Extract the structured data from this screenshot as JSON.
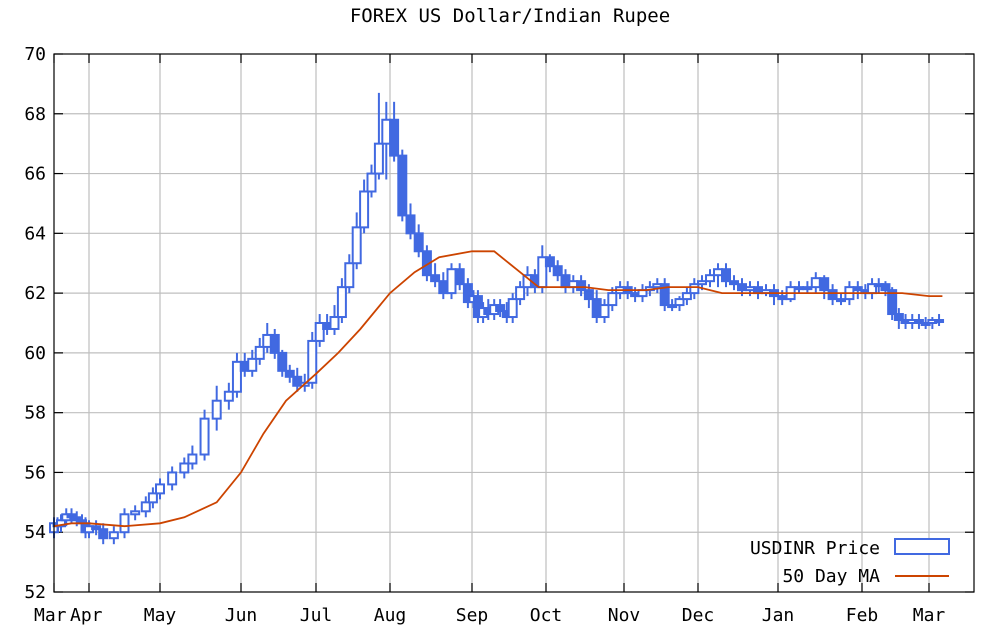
{
  "chart_data": {
    "type": "candlestick",
    "title": "FOREX US Dollar/Indian Rupee",
    "xlabel": "",
    "ylabel": "",
    "ylim": [
      52,
      70
    ],
    "y_ticks": [
      52,
      54,
      56,
      58,
      60,
      62,
      64,
      66,
      68,
      70
    ],
    "x_ticks": [
      "Mar",
      "Apr",
      "May",
      "Jun",
      "Jul",
      "Aug",
      "Sep",
      "Oct",
      "Nov",
      "Dec",
      "Jan",
      "Feb",
      "Mar"
    ],
    "grid": true,
    "legend_position": "bottom-right",
    "series": [
      {
        "name": "USDINR Price",
        "style": "candlestick",
        "color": "#4169E1",
        "x": [
          0.0,
          0.1,
          0.2,
          0.35,
          0.5,
          0.65,
          0.8,
          0.9,
          1.0,
          1.1,
          1.2,
          1.35,
          1.5,
          1.65,
          1.8,
          1.9,
          2.0,
          2.15,
          2.3,
          2.4,
          2.55,
          2.7,
          2.85,
          2.95,
          3.05,
          3.15,
          3.25,
          3.35,
          3.45,
          3.55,
          3.65,
          3.75,
          3.85,
          3.95,
          4.05,
          4.15,
          4.25,
          4.35,
          4.45,
          4.55,
          4.65,
          4.75,
          4.85,
          4.95,
          5.05,
          5.15,
          5.25,
          5.35,
          5.45,
          5.55,
          5.65,
          5.75,
          5.85,
          5.95,
          6.02,
          6.08,
          6.15,
          6.22,
          6.3,
          6.38,
          6.47,
          6.55,
          6.65,
          6.75,
          6.85,
          6.95,
          7.05,
          7.15,
          7.25,
          7.35,
          7.45,
          7.55,
          7.65,
          7.75,
          7.85,
          7.95,
          8.05,
          8.15,
          8.25,
          8.35,
          8.45,
          8.55,
          8.65,
          8.75,
          8.85,
          8.95,
          9.05,
          9.15,
          9.25,
          9.35,
          9.45,
          9.55,
          9.65,
          9.75,
          9.85,
          9.95,
          10.05,
          10.15,
          10.25,
          10.35,
          10.45,
          10.55,
          10.65,
          10.75,
          10.85,
          10.95,
          11.05,
          11.15,
          11.25,
          11.35,
          11.45,
          11.55,
          11.65,
          11.75,
          11.85,
          11.95,
          12.05,
          12.15
        ],
        "open": [
          54.0,
          54.3,
          54.2,
          54.4,
          54.6,
          54.5,
          54.4,
          54.3,
          54.0,
          54.2,
          54.1,
          53.8,
          54.0,
          54.6,
          54.7,
          55.0,
          55.3,
          55.6,
          56.0,
          56.3,
          56.6,
          57.8,
          58.4,
          58.7,
          59.7,
          59.4,
          59.8,
          60.2,
          60.6,
          60.0,
          59.4,
          59.2,
          58.9,
          59.0,
          60.4,
          61.0,
          60.8,
          61.2,
          62.2,
          63.0,
          64.2,
          65.4,
          66.0,
          67.0,
          67.8,
          66.6,
          64.6,
          64.0,
          63.4,
          62.6,
          62.4,
          62.0,
          62.8,
          62.3,
          61.7,
          61.9,
          61.2,
          61.5,
          61.3,
          61.6,
          61.4,
          61.2,
          61.8,
          62.2,
          62.6,
          62.2,
          63.2,
          62.9,
          62.6,
          62.2,
          62.4,
          62.1,
          61.8,
          61.2,
          61.6,
          62.0,
          62.2,
          62.0,
          61.9,
          62.1,
          62.2,
          62.3,
          61.6,
          61.6,
          61.8,
          62.0,
          62.3,
          62.4,
          62.6,
          62.8,
          62.4,
          62.3,
          62.1,
          62.2,
          62.0,
          62.1,
          61.9,
          61.8,
          62.2,
          62.2,
          62.2,
          62.5,
          62.1,
          61.8,
          61.8,
          62.2,
          62.1,
          62.0,
          62.3,
          62.3,
          62.1,
          61.3,
          61.1,
          61.0,
          61.1,
          61.0,
          61.0,
          61.1
        ],
        "close": [
          54.3,
          54.2,
          54.4,
          54.6,
          54.5,
          54.4,
          54.3,
          54.0,
          54.2,
          54.1,
          53.8,
          54.0,
          54.6,
          54.7,
          55.0,
          55.3,
          55.6,
          56.0,
          56.3,
          56.6,
          57.8,
          58.4,
          58.7,
          59.7,
          59.4,
          59.8,
          60.2,
          60.6,
          60.0,
          59.4,
          59.2,
          58.9,
          59.0,
          60.4,
          61.0,
          60.8,
          61.2,
          62.2,
          63.0,
          64.2,
          65.4,
          66.0,
          67.0,
          67.8,
          66.6,
          64.6,
          64.0,
          63.4,
          62.6,
          62.4,
          62.0,
          62.8,
          62.3,
          61.7,
          61.9,
          61.2,
          61.5,
          61.3,
          61.6,
          61.4,
          61.2,
          61.8,
          62.2,
          62.6,
          62.2,
          63.2,
          62.9,
          62.6,
          62.2,
          62.4,
          62.1,
          61.8,
          61.2,
          61.6,
          62.0,
          62.2,
          62.0,
          61.9,
          62.1,
          62.2,
          62.3,
          61.6,
          61.6,
          61.8,
          62.0,
          62.3,
          62.4,
          62.6,
          62.8,
          62.4,
          62.3,
          62.1,
          62.2,
          62.0,
          62.1,
          61.9,
          61.8,
          62.2,
          62.2,
          62.2,
          62.5,
          62.1,
          61.8,
          61.8,
          62.2,
          62.1,
          62.0,
          62.3,
          62.3,
          62.1,
          61.3,
          61.1,
          61.0,
          61.1,
          61.0,
          61.0,
          61.1,
          61.1
        ],
        "high": [
          54.5,
          54.5,
          54.6,
          54.8,
          54.8,
          54.7,
          54.6,
          54.5,
          54.4,
          54.4,
          54.3,
          54.2,
          54.8,
          54.9,
          55.2,
          55.5,
          55.8,
          56.2,
          56.5,
          56.9,
          58.1,
          58.9,
          59.0,
          60.0,
          60.0,
          60.1,
          60.5,
          61.0,
          60.8,
          60.1,
          59.6,
          59.5,
          59.3,
          60.7,
          61.3,
          61.3,
          61.6,
          62.5,
          63.3,
          64.7,
          65.8,
          66.3,
          68.7,
          68.4,
          68.4,
          66.8,
          65.0,
          64.3,
          63.6,
          63.0,
          62.7,
          63.0,
          63.0,
          62.5,
          62.1,
          62.1,
          61.7,
          61.8,
          61.8,
          61.8,
          61.7,
          62.0,
          62.4,
          62.9,
          62.8,
          63.6,
          63.3,
          63.1,
          62.8,
          62.6,
          62.6,
          62.3,
          62.1,
          61.8,
          62.2,
          62.4,
          62.4,
          62.2,
          62.3,
          62.4,
          62.5,
          62.5,
          61.8,
          61.9,
          62.2,
          62.5,
          62.6,
          62.8,
          63.0,
          63.0,
          62.6,
          62.5,
          62.4,
          62.4,
          62.3,
          62.3,
          62.1,
          62.4,
          62.4,
          62.4,
          62.7,
          62.6,
          62.3,
          62.0,
          62.4,
          62.4,
          62.3,
          62.5,
          62.5,
          62.4,
          62.2,
          61.5,
          61.3,
          61.3,
          61.3,
          61.2,
          61.2,
          61.3
        ],
        "low": [
          53.8,
          54.0,
          54.0,
          54.2,
          54.3,
          54.2,
          54.1,
          53.8,
          53.8,
          53.9,
          53.6,
          53.6,
          53.8,
          54.4,
          54.5,
          54.8,
          55.1,
          55.4,
          55.8,
          56.1,
          56.4,
          57.4,
          58.1,
          58.5,
          59.2,
          59.2,
          59.6,
          60.0,
          59.8,
          59.2,
          59.0,
          58.7,
          58.7,
          58.8,
          60.2,
          60.6,
          60.6,
          61.0,
          62.0,
          62.8,
          64.0,
          65.2,
          65.8,
          65.8,
          66.4,
          64.4,
          63.8,
          63.2,
          62.4,
          62.2,
          61.8,
          61.8,
          62.1,
          61.5,
          61.5,
          61.0,
          61.0,
          61.1,
          61.1,
          61.2,
          61.0,
          61.0,
          61.6,
          61.9,
          62.0,
          62.0,
          62.7,
          62.4,
          62.0,
          62.0,
          61.9,
          61.5,
          61.0,
          61.0,
          61.4,
          61.8,
          61.8,
          61.7,
          61.7,
          61.9,
          62.0,
          61.4,
          61.4,
          61.4,
          61.6,
          61.8,
          62.1,
          62.2,
          62.2,
          62.2,
          62.1,
          61.9,
          61.9,
          61.8,
          61.9,
          61.6,
          61.6,
          61.7,
          62.0,
          62.0,
          62.0,
          61.8,
          61.6,
          61.6,
          61.6,
          61.8,
          61.8,
          61.8,
          62.0,
          61.9,
          61.1,
          60.8,
          60.8,
          60.8,
          60.8,
          60.8,
          60.8,
          60.9
        ]
      },
      {
        "name": "50 Day MA",
        "style": "line",
        "color": "#CC4400",
        "x": [
          0.0,
          0.5,
          1.0,
          1.5,
          2.0,
          2.3,
          2.7,
          3.0,
          3.3,
          3.6,
          4.0,
          4.3,
          4.6,
          5.0,
          5.3,
          5.6,
          6.0,
          6.3,
          6.6,
          6.9,
          7.2,
          7.5,
          7.8,
          8.0,
          8.3,
          8.6,
          9.0,
          9.3,
          9.6,
          10.0,
          10.3,
          10.6,
          11.0,
          11.3,
          11.6,
          12.0,
          12.2
        ],
        "values": [
          54.2,
          54.3,
          54.3,
          54.2,
          54.3,
          54.5,
          55.0,
          56.0,
          57.3,
          58.4,
          59.3,
          60.0,
          60.8,
          62.0,
          62.7,
          63.2,
          63.4,
          63.4,
          62.8,
          62.2,
          62.2,
          62.2,
          62.1,
          62.1,
          62.1,
          62.2,
          62.2,
          62.0,
          62.0,
          62.0,
          62.0,
          62.0,
          62.0,
          62.0,
          62.0,
          61.9,
          61.9
        ]
      }
    ]
  }
}
